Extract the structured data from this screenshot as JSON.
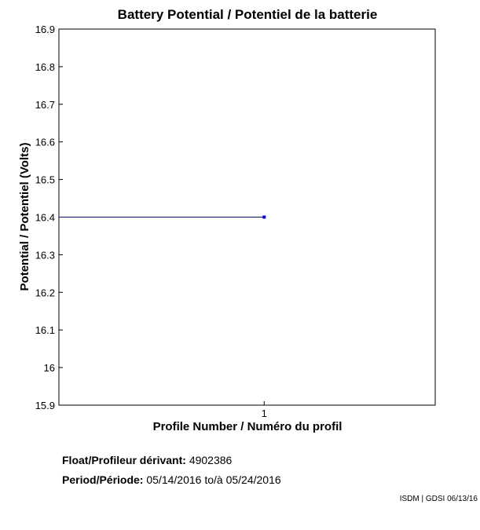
{
  "chart_data": {
    "type": "line",
    "title": "Battery Potential / Potentiel de la batterie",
    "xlabel": "Profile Number / Numéro du profil",
    "ylabel": "Potential / Potentiel (Volts)",
    "x_ticks": [
      "1"
    ],
    "ylim": [
      15.9,
      16.9
    ],
    "y_ticks": [
      "15.9",
      "16",
      "16.1",
      "16.2",
      "16.3",
      "16.4",
      "16.5",
      "16.6",
      "16.7",
      "16.8",
      "16.9"
    ],
    "xlim": [
      0.4,
      1.5
    ],
    "grid": false,
    "series": [
      {
        "x": [
          1
        ],
        "y": [
          16.4
        ],
        "color": "#0000ff",
        "line_from_axis": true
      }
    ]
  },
  "info": {
    "float_label": "Float/Profileur dérivant:",
    "float_value": "4902386",
    "period_label": "Period/Période:",
    "period_start": "05/14/2016",
    "period_sep": "to/à",
    "period_end": "05/24/2016"
  },
  "credit": "ISDM | GDSI 06/13/16"
}
